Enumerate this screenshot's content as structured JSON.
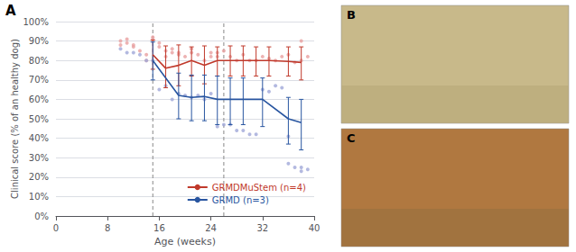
{
  "chart_data": {
    "type": "line",
    "xlabel": "Age (weeks)",
    "ylabel": "Clinical score (% of an healthy dog)",
    "annotations": [
      "A",
      "B",
      "C"
    ],
    "xlim": [
      0,
      40
    ],
    "ylim": [
      0,
      1.0
    ],
    "xticks": [
      0,
      8,
      16,
      24,
      32,
      40
    ],
    "yticks": [
      {
        "value": 0.0,
        "label": "0%"
      },
      {
        "value": 0.1,
        "label": "10%"
      },
      {
        "value": 0.2,
        "label": "20%"
      },
      {
        "value": 0.3,
        "label": "30%"
      },
      {
        "value": 0.4,
        "label": "40%"
      },
      {
        "value": 0.5,
        "label": "50%"
      },
      {
        "value": 0.6,
        "label": "60%"
      },
      {
        "value": 0.7,
        "label": "70%"
      },
      {
        "value": 0.8,
        "label": "80%"
      },
      {
        "value": 0.9,
        "label": "90%"
      },
      {
        "value": 1.0,
        "label": "100%"
      }
    ],
    "grid": true,
    "legend": "lower right",
    "vlines": [
      15,
      26
    ],
    "series": [
      {
        "type": "scatter",
        "color": "#e8a0a0",
        "x": [
          10,
          10,
          11,
          11,
          12,
          12,
          13,
          14,
          14,
          15,
          15,
          16,
          16,
          17,
          17,
          18,
          18,
          19,
          19,
          20,
          21,
          21,
          22,
          23,
          24,
          24,
          25,
          25,
          26,
          27,
          28,
          29,
          30,
          31,
          32,
          33,
          34,
          35,
          36,
          37,
          38,
          38,
          39
        ],
        "values": [
          0.88,
          0.9,
          0.89,
          0.91,
          0.87,
          0.88,
          0.85,
          0.83,
          0.8,
          0.91,
          0.92,
          0.89,
          0.87,
          0.82,
          0.85,
          0.84,
          0.86,
          0.84,
          0.83,
          0.82,
          0.84,
          0.86,
          0.83,
          0.8,
          0.82,
          0.84,
          0.82,
          0.84,
          0.85,
          0.82,
          0.8,
          0.83,
          0.8,
          0.8,
          0.82,
          0.81,
          0.8,
          0.82,
          0.83,
          0.79,
          0.9,
          0.8,
          0.82
        ]
      },
      {
        "type": "scatter",
        "color": "#a0a8d8",
        "x": [
          10,
          11,
          12,
          13,
          14,
          15,
          16,
          17,
          18,
          19,
          20,
          21,
          22,
          23,
          24,
          25,
          26,
          27,
          28,
          29,
          30,
          31,
          32,
          33,
          34,
          35,
          36,
          36,
          37,
          38,
          38,
          39
        ],
        "values": [
          0.86,
          0.84,
          0.84,
          0.83,
          0.8,
          0.8,
          0.65,
          0.67,
          0.6,
          0.63,
          0.62,
          0.61,
          0.62,
          0.6,
          0.63,
          0.46,
          0.47,
          0.47,
          0.44,
          0.44,
          0.42,
          0.42,
          0.65,
          0.64,
          0.67,
          0.66,
          0.41,
          0.27,
          0.25,
          0.25,
          0.23,
          0.24
        ]
      },
      {
        "type": "line",
        "name": "GRMDMuStem (n=4)",
        "color": "#c0392b",
        "x": [
          15,
          17,
          19,
          21,
          23,
          25,
          27,
          29,
          31,
          33,
          36,
          38
        ],
        "values": [
          0.83,
          0.76,
          0.775,
          0.8,
          0.775,
          0.8,
          0.8,
          0.8,
          0.8,
          0.8,
          0.795,
          0.79
        ],
        "sd_up": [
          0.905,
          0.875,
          0.88,
          0.87,
          0.875,
          0.87,
          0.875,
          0.875,
          0.87,
          0.87,
          0.87,
          0.87
        ],
        "sd_lo": [
          0.755,
          0.66,
          0.67,
          0.72,
          0.68,
          0.72,
          0.72,
          0.72,
          0.72,
          0.72,
          0.72,
          0.7
        ]
      },
      {
        "type": "line",
        "name": "GRMD (n=3)",
        "color": "#2855a0",
        "x": [
          15,
          19,
          21,
          23,
          25,
          27,
          29,
          32,
          36,
          38
        ],
        "values": [
          0.8,
          0.62,
          0.61,
          0.615,
          0.6,
          0.6,
          0.6,
          0.6,
          0.5,
          0.48
        ],
        "sd_up": [
          0.895,
          0.735,
          0.725,
          0.725,
          0.72,
          0.71,
          0.71,
          0.71,
          0.61,
          0.6
        ],
        "sd_lo": [
          0.7,
          0.5,
          0.49,
          0.49,
          0.47,
          0.47,
          0.47,
          0.46,
          0.37,
          0.34
        ]
      }
    ]
  }
}
